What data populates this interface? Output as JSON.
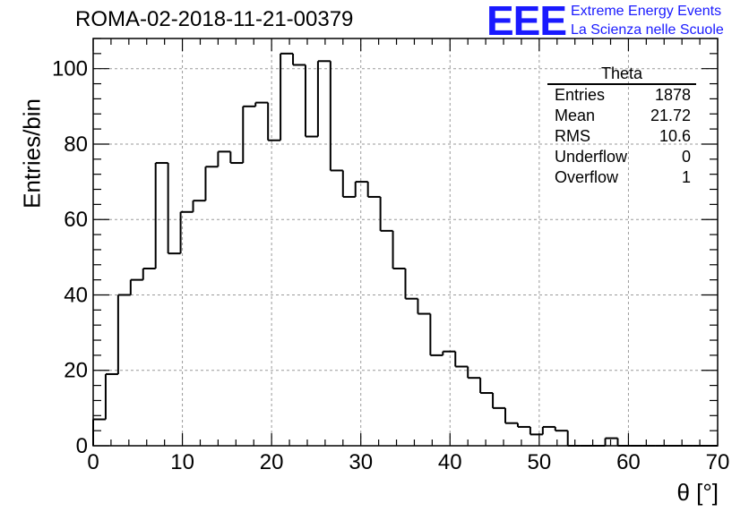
{
  "header": {
    "title": "ROMA-02-2018-11-21-00379",
    "logo_text": "EEE",
    "logo_line1": "Extreme Energy Events",
    "logo_line2": "La Scienza nelle Scuole",
    "brand_color": "#1a1aff"
  },
  "stats_box": {
    "title": "Theta",
    "rows": [
      {
        "label": "Entries",
        "value": "1878"
      },
      {
        "label": "Mean",
        "value": "21.72"
      },
      {
        "label": "RMS",
        "value": "10.6"
      },
      {
        "label": "Underflow",
        "value": "0"
      },
      {
        "label": "Overflow",
        "value": "1"
      }
    ]
  },
  "chart_data": {
    "type": "bar",
    "style": "step-histogram",
    "title": "ROMA-02-2018-11-21-00379",
    "xlabel": "θ [°]",
    "ylabel": "Entries/bin",
    "xlim": [
      0,
      70
    ],
    "ylim": [
      0,
      108
    ],
    "bin_width": 1.4,
    "x_ticks": [
      0,
      10,
      20,
      30,
      40,
      50,
      60,
      70
    ],
    "y_ticks": [
      0,
      20,
      40,
      60,
      80,
      100
    ],
    "grid": true,
    "values": [
      7,
      19,
      40,
      44,
      47,
      75,
      51,
      62,
      65,
      74,
      78,
      75,
      90,
      91,
      81,
      104,
      101,
      82,
      102,
      73,
      66,
      70,
      66,
      57,
      47,
      39,
      35,
      24,
      25,
      21,
      18,
      14,
      10,
      6,
      5,
      3,
      5,
      4,
      0,
      0,
      0,
      2,
      0,
      0,
      0,
      0,
      0,
      0,
      0,
      0
    ]
  }
}
